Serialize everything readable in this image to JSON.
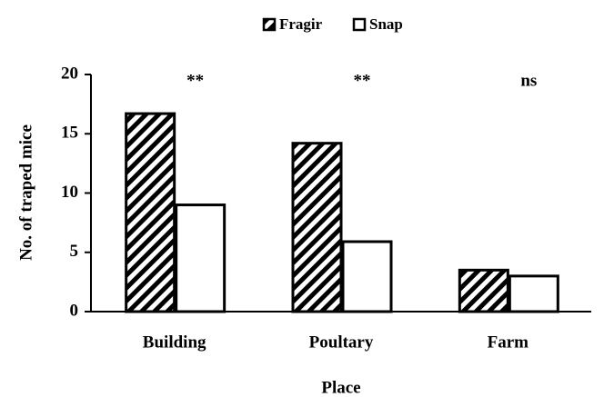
{
  "chart_data": {
    "type": "bar",
    "xlabel": "Place",
    "ylabel": "No. of traped mice",
    "categories": [
      "Building",
      "Poultary",
      "Farm"
    ],
    "series": [
      {
        "name": "Fragir",
        "color": "#000000",
        "pattern": "hatch",
        "values": [
          16.7,
          14.2,
          3.5
        ]
      },
      {
        "name": "Snap",
        "color": "#000000",
        "pattern": "none",
        "values": [
          9.0,
          5.9,
          3.0
        ]
      }
    ],
    "annotations": [
      "**",
      "**",
      "ns"
    ],
    "ylim": [
      0,
      20
    ],
    "yticks": [
      0,
      5,
      10,
      15,
      20
    ],
    "legend": "top"
  }
}
